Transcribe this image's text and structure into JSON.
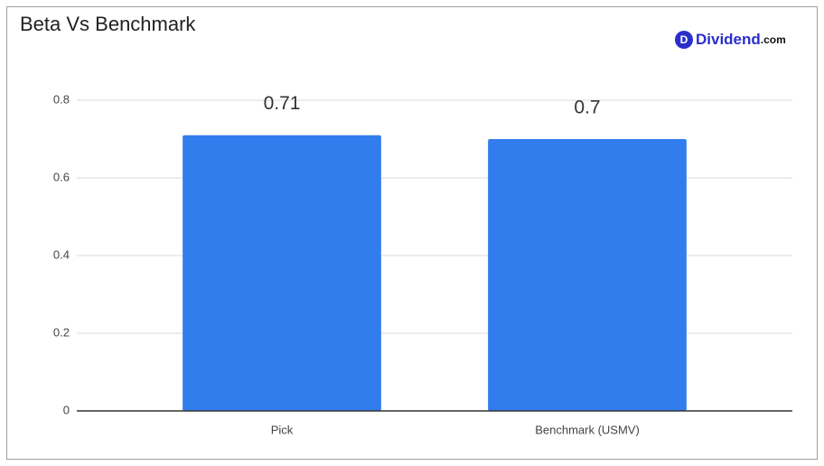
{
  "chart_data": {
    "type": "bar",
    "title": "Beta Vs Benchmark",
    "categories": [
      "Pick",
      "Benchmark (USMV)"
    ],
    "values": [
      0.71,
      0.7
    ],
    "color": "#317ded",
    "ylim": [
      0,
      0.8
    ],
    "yticks": [
      0,
      0.2,
      0.4,
      0.6,
      0.8
    ],
    "grid": true
  },
  "logo": {
    "icon": "D",
    "name": "Dividend",
    "suffix": ".com"
  }
}
